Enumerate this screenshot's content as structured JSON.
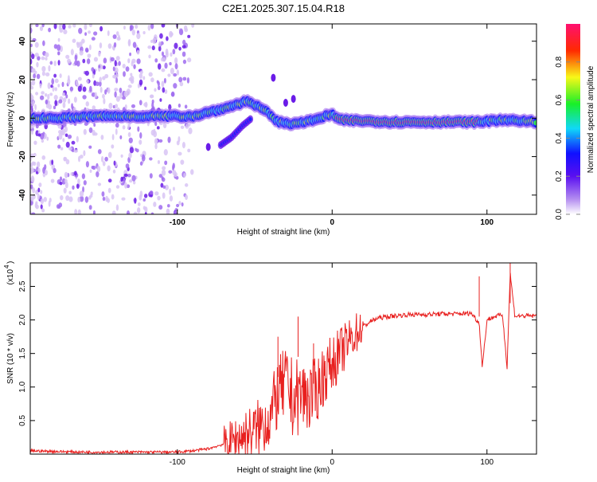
{
  "title": "C2E1.2025.307.15.04.R18",
  "colors": {
    "line": "#e8201f",
    "axis": "#000000",
    "spectrogram_band": [
      "#d8c4f4",
      "#a06cf0",
      "#6a1be8",
      "#1a22ff",
      "#16c8f0",
      "#36e85a",
      "#f4f418",
      "#ff4010",
      "#ff1060"
    ]
  },
  "chart_data": [
    {
      "type": "heatmap",
      "name": "spectrogram",
      "xlabel": "Height of straight line (km)",
      "ylabel": "Frequency (Hz)",
      "xlim": [
        -195,
        132
      ],
      "ylim": [
        -50,
        49
      ],
      "xticks": [
        -100,
        0,
        100
      ],
      "yticks": [
        -40,
        -20,
        0,
        20,
        40
      ],
      "colorbar": {
        "label": "Normalized spectral amplitude",
        "range": [
          0,
          1
        ],
        "ticks": [
          "0.0",
          "0.2",
          "0.4",
          "0.6",
          "0.8"
        ]
      },
      "main_band": [
        [
          -195,
          0
        ],
        [
          -180,
          0
        ],
        [
          -150,
          1
        ],
        [
          -120,
          1
        ],
        [
          -100,
          1
        ],
        [
          -90,
          1
        ],
        [
          -80,
          3
        ],
        [
          -70,
          5
        ],
        [
          -62,
          7
        ],
        [
          -55,
          9
        ],
        [
          -48,
          6
        ],
        [
          -42,
          3
        ],
        [
          -35,
          -2
        ],
        [
          -28,
          -3
        ],
        [
          -20,
          -2
        ],
        [
          -10,
          -1
        ],
        [
          -5,
          1
        ],
        [
          0,
          2
        ],
        [
          5,
          -1
        ],
        [
          40,
          -2
        ],
        [
          80,
          -2
        ],
        [
          95,
          -2
        ],
        [
          110,
          -1
        ],
        [
          132,
          -2
        ]
      ],
      "branch": [
        [
          -72,
          -14
        ],
        [
          -65,
          -10
        ],
        [
          -58,
          -4
        ],
        [
          -52,
          0
        ]
      ],
      "spots": [
        [
          -80,
          -15
        ],
        [
          -38,
          21
        ],
        [
          -30,
          8
        ],
        [
          -25,
          10
        ]
      ],
      "hot_segment_x": [
        2,
        95
      ]
    },
    {
      "type": "line",
      "name": "snr",
      "xlabel": "Height of straight line (km)",
      "ylabel": "SNR (10 * v/v)",
      "scale_label": "(x10",
      "scale_exp": "4",
      "xlim": [
        -195,
        132
      ],
      "ylim": [
        0,
        2.85
      ],
      "xticks": [
        -100,
        0,
        100
      ],
      "yticks": [
        0.5,
        1.0,
        1.5,
        2.0,
        2.5
      ],
      "series": [
        {
          "name": "SNR",
          "x": [
            -195,
            -180,
            -160,
            -140,
            -120,
            -100,
            -90,
            -80,
            -70,
            -60,
            -50,
            -40,
            -35,
            -30,
            -25,
            -20,
            -15,
            -10,
            -5,
            0,
            5,
            10,
            15,
            20,
            25,
            30,
            40,
            50,
            60,
            70,
            80,
            90,
            95,
            97,
            100,
            105,
            110,
            113,
            115,
            118,
            125,
            132
          ],
          "y": [
            0.05,
            0.04,
            0.03,
            0.03,
            0.03,
            0.03,
            0.05,
            0.08,
            0.15,
            0.25,
            0.35,
            0.55,
            0.9,
            1.05,
            0.8,
            0.9,
            0.85,
            0.95,
            1.2,
            1.35,
            1.5,
            1.65,
            1.8,
            1.9,
            1.98,
            2.03,
            2.06,
            2.08,
            2.08,
            2.09,
            2.09,
            2.1,
            1.95,
            1.3,
            2.0,
            2.05,
            2.08,
            1.3,
            2.7,
            2.06,
            2.06,
            2.06
          ]
        }
      ],
      "annotations": [
        {
          "x": -35,
          "y": 1.75
        },
        {
          "x": -22,
          "y": 2.05
        },
        {
          "x": -12,
          "y": 1.65
        },
        {
          "x": 95,
          "y": 2.65
        },
        {
          "x": 115,
          "y": 2.85
        }
      ]
    }
  ]
}
